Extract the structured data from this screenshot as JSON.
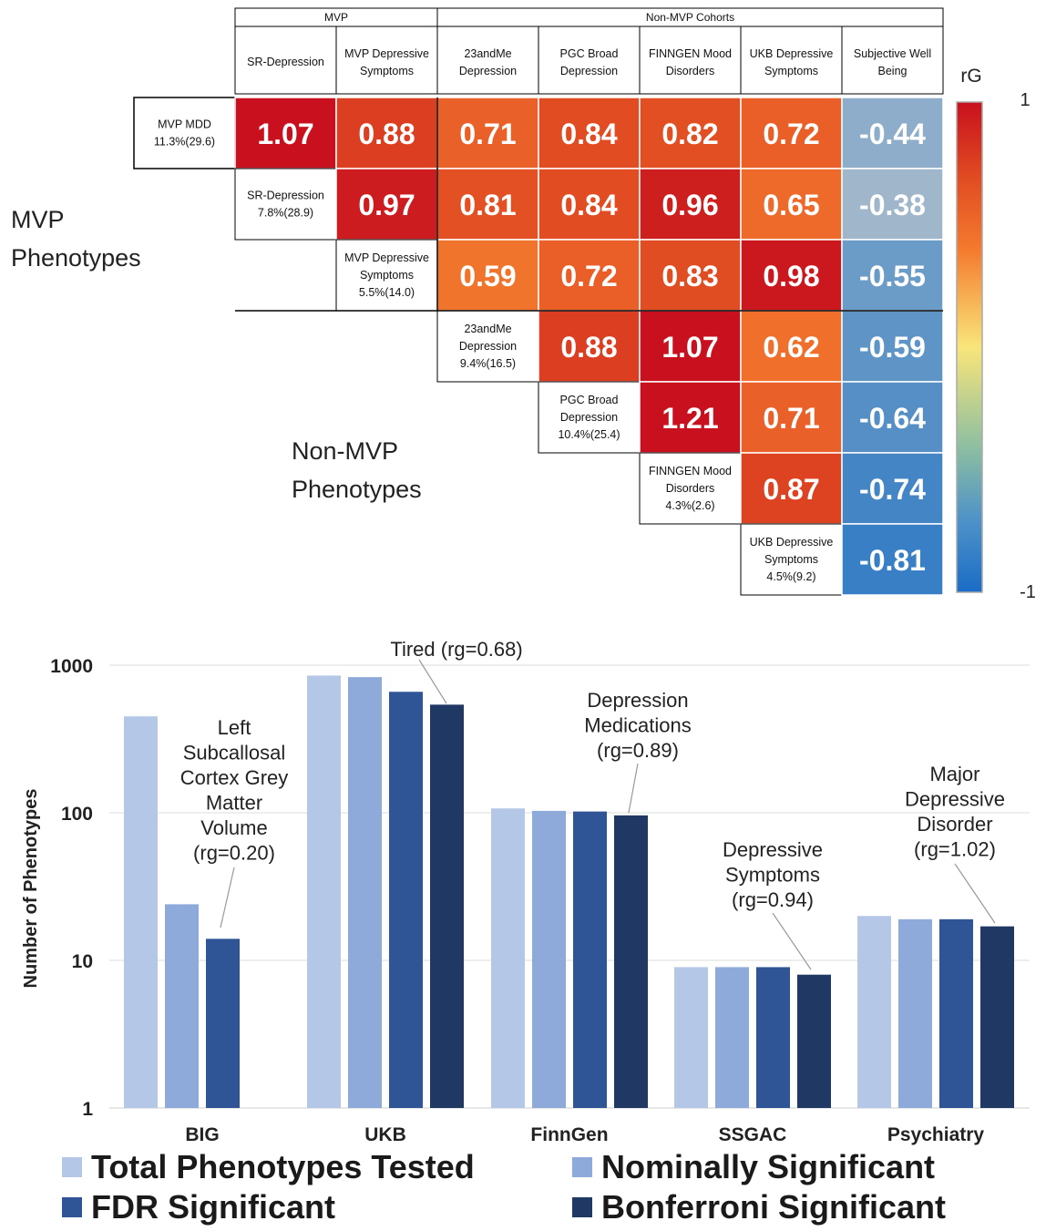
{
  "chart_data": [
    {
      "type": "heatmap",
      "header_groups": [
        {
          "label": "MVP",
          "span": [
            "SR-Depression",
            "MVP Depressive Symptoms"
          ]
        },
        {
          "label": "Non-MVP Cohorts",
          "span": [
            "23andMe Depression",
            "PGC Broad Depression",
            "FINNGEN Mood Disorders",
            "UKB Depressive Symptoms",
            "Subjective Well Being"
          ]
        }
      ],
      "columns": [
        [
          "SR-Depression"
        ],
        [
          "MVP Depressive",
          "Symptoms"
        ],
        [
          "23andMe",
          "Depression"
        ],
        [
          "PGC Broad",
          "Depression"
        ],
        [
          "FINNGEN Mood",
          "Disorders"
        ],
        [
          "UKB Depressive",
          "Symptoms"
        ],
        [
          "Subjective Well",
          "Being"
        ]
      ],
      "rows": [
        {
          "label": [
            "MVP MDD",
            "11.3%(29.6)"
          ],
          "values": [
            1.07,
            0.88,
            0.71,
            0.84,
            0.82,
            0.72,
            -0.44
          ]
        },
        {
          "label": [
            "SR-Depression",
            "7.8%(28.9)"
          ],
          "values": [
            0.97,
            0.81,
            0.84,
            0.96,
            0.65,
            -0.38
          ]
        },
        {
          "label": [
            "MVP Depressive",
            "Symptoms",
            "5.5%(14.0)"
          ],
          "values": [
            0.59,
            0.72,
            0.83,
            0.98,
            -0.55
          ]
        },
        {
          "label": [
            "23andMe",
            "Depression",
            "9.4%(16.5)"
          ],
          "values": [
            0.88,
            1.07,
            0.62,
            -0.59
          ]
        },
        {
          "label": [
            "PGC Broad",
            "Depression",
            "10.4%(25.4)"
          ],
          "values": [
            1.21,
            0.71,
            -0.64
          ]
        },
        {
          "label": [
            "FINNGEN Mood",
            "Disorders",
            "4.3%(2.6)"
          ],
          "values": [
            0.87,
            -0.74
          ]
        },
        {
          "label": [
            "UKB Depressive",
            "Symptoms",
            "4.5%(9.2)"
          ],
          "values": [
            -0.81
          ]
        }
      ],
      "side_labels": {
        "mvp": [
          "MVP",
          "Phenotypes"
        ],
        "non_mvp": [
          "Non-MVP",
          "Phenotypes"
        ]
      },
      "colorbar": {
        "title": "rG",
        "max_label": "1",
        "min_label": "-1",
        "range": [
          -1,
          1
        ]
      },
      "colors": {
        "high": "#c8101e",
        "mid_high": "#f47a2e",
        "mid": "#f9e57a",
        "low": "#1a6cc6"
      }
    },
    {
      "type": "bar",
      "yscale": "log",
      "ylabel": "Number of Phenotypes",
      "ylim": [
        1,
        1000
      ],
      "yticks": [
        "1",
        "10",
        "100",
        "1000"
      ],
      "categories": [
        "BIG",
        "UKB",
        "FinnGen",
        "SSGAC",
        "Psychiatry"
      ],
      "series": [
        {
          "name": "Total Phenotypes Tested",
          "color": "#b4c7e7",
          "values": [
            450,
            850,
            107,
            9,
            20
          ]
        },
        {
          "name": "Nominally Significant",
          "color": "#8eaadb",
          "values": [
            24,
            830,
            103,
            9,
            19
          ]
        },
        {
          "name": "FDR Significant",
          "color": "#2f5597",
          "values": [
            14,
            660,
            102,
            9,
            19
          ]
        },
        {
          "name": "Bonferroni Significant",
          "color": "#1f3864",
          "values": [
            null,
            540,
            96,
            8,
            17
          ]
        }
      ],
      "annotations": [
        {
          "lines": [
            "Left",
            "Subcallosal",
            "Cortex Grey",
            "Matter",
            "Volume",
            "(rg=0.20)"
          ],
          "category": "BIG",
          "series": 2
        },
        {
          "lines": [
            "Tired (rg=0.68)"
          ],
          "category": "UKB",
          "series": 3
        },
        {
          "lines": [
            "Depression",
            "Medications",
            "(rg=0.89)"
          ],
          "category": "FinnGen",
          "series": 3
        },
        {
          "lines": [
            "Depressive",
            "Symptoms",
            "(rg=0.94)"
          ],
          "category": "SSGAC",
          "series": 3
        },
        {
          "lines": [
            "Major",
            "Depressive",
            "Disorder",
            "(rg=1.02)"
          ],
          "category": "Psychiatry",
          "series": 3
        }
      ],
      "legend": [
        "Total Phenotypes Tested",
        "Nominally Significant",
        "FDR Significant",
        "Bonferroni Significant"
      ]
    }
  ]
}
